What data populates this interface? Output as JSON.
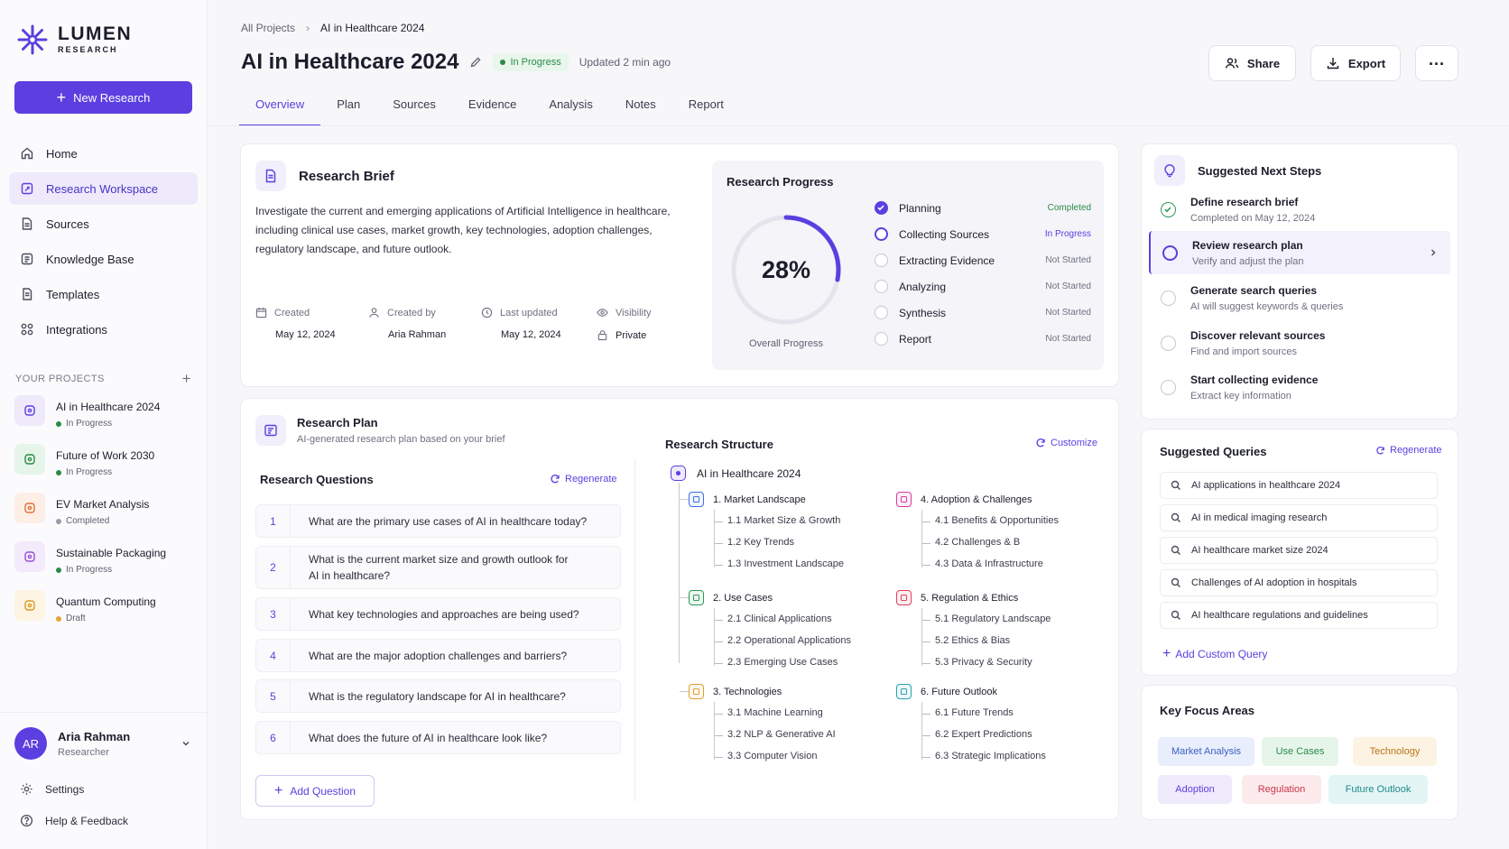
{
  "brand": {
    "name": "LUMEN",
    "sub": "RESEARCH",
    "accent": "#5b3fe0"
  },
  "sidebar": {
    "new_button": "New Research",
    "nav": [
      {
        "label": "Home",
        "icon": "home-icon"
      },
      {
        "label": "Research Workspace",
        "icon": "workspace-icon",
        "active": true
      },
      {
        "label": "Sources",
        "icon": "document-icon"
      },
      {
        "label": "Knowledge Base",
        "icon": "database-icon"
      },
      {
        "label": "Templates",
        "icon": "template-icon"
      },
      {
        "label": "Integrations",
        "icon": "integrations-icon"
      }
    ],
    "projects_title": "YOUR PROJECTS",
    "projects": [
      {
        "name": "AI in Healthcare 2024",
        "status": "In Progress",
        "status_color": "#2b8a46",
        "icon_bg": "#eeeafc",
        "icon_color": "#5b3fe0"
      },
      {
        "name": "Future of Work 2030",
        "status": "In Progress",
        "status_color": "#2b8a46",
        "icon_bg": "#e6f5ea",
        "icon_color": "#2b8a46"
      },
      {
        "name": "EV Market Analysis",
        "status": "Completed",
        "status_color": "#9a9cab",
        "icon_bg": "#fdeee6",
        "icon_color": "#e0703a"
      },
      {
        "name": "Sustainable Packaging",
        "status": "In Progress",
        "status_color": "#2b8a46",
        "icon_bg": "#f3eafb",
        "icon_color": "#9b4fd8"
      },
      {
        "name": "Quantum Computing",
        "status": "Draft",
        "status_color": "#e8a23a",
        "icon_bg": "#fdf4e3",
        "icon_color": "#d99a22"
      }
    ],
    "user": {
      "initials": "AR",
      "name": "Aria Rahman",
      "role": "Researcher"
    },
    "settings": "Settings",
    "help": "Help & Feedback"
  },
  "header": {
    "breadcrumb_root": "All Projects",
    "breadcrumb_current": "AI in Healthcare 2024",
    "title": "AI in Healthcare 2024",
    "status": "In Progress",
    "updated": "Updated 2 min ago",
    "share": "Share",
    "export": "Export",
    "tabs": [
      "Overview",
      "Plan",
      "Sources",
      "Evidence",
      "Analysis",
      "Notes",
      "Report"
    ]
  },
  "brief": {
    "title": "Research Brief",
    "text": "Investigate the current and emerging applications of Artificial Intelligence in healthcare, including clinical use cases, market growth, key technologies, adoption challenges, regulatory landscape, and future outlook.",
    "meta": [
      {
        "label": "Created",
        "value": "May 12, 2024"
      },
      {
        "label": "Created by",
        "value": "Aria Rahman"
      },
      {
        "label": "Last updated",
        "value": "May 12, 2024"
      },
      {
        "label": "Visibility",
        "value": "Private"
      }
    ]
  },
  "progress": {
    "title": "Research Progress",
    "percent_label": "28%",
    "percent": 0.28,
    "caption": "Overall Progress",
    "steps": [
      {
        "name": "Planning",
        "status": "Completed",
        "state": "done"
      },
      {
        "name": "Collecting Sources",
        "status": "In Progress",
        "state": "active"
      },
      {
        "name": "Extracting Evidence",
        "status": "Not Started",
        "state": "todo"
      },
      {
        "name": "Analyzing",
        "status": "Not Started",
        "state": "todo"
      },
      {
        "name": "Synthesis",
        "status": "Not Started",
        "state": "todo"
      },
      {
        "name": "Report",
        "status": "Not Started",
        "state": "todo"
      }
    ]
  },
  "plan": {
    "title": "Research Plan",
    "subtitle": "AI-generated research plan based on your brief",
    "questions_title": "Research Questions",
    "regenerate": "Regenerate",
    "questions": [
      {
        "n": "1",
        "text": "What are the primary use cases of AI in healthcare today?"
      },
      {
        "n": "2",
        "text": "What is the current market size and growth outlook for AI in healthcare?"
      },
      {
        "n": "3",
        "text": "What key technologies and approaches are being used?"
      },
      {
        "n": "4",
        "text": "What are the major adoption challenges and barriers?"
      },
      {
        "n": "5",
        "text": "What is the regulatory landscape for AI in healthcare?"
      },
      {
        "n": "6",
        "text": "What does the future of AI in healthcare look like?"
      }
    ],
    "add_question": "Add Question"
  },
  "structure": {
    "title": "Research Structure",
    "customize": "Customize",
    "root": "AI in Healthcare 2024",
    "sections": [
      {
        "title": "1. Market Landscape",
        "color": "#3d6fe0",
        "items": [
          "1.1 Market Size & Growth",
          "1.2 Key Trends",
          "1.3 Investment Landscape"
        ]
      },
      {
        "title": "2. Use Cases",
        "color": "#2b9a56",
        "items": [
          "2.1 Clinical Applications",
          "2.2 Operational Applications",
          "2.3 Emerging Use Cases"
        ]
      },
      {
        "title": "3. Technologies",
        "color": "#e0a030",
        "items": [
          "3.1 Machine Learning",
          "3.2 NLP & Generative AI",
          "3.3 Computer Vision"
        ]
      },
      {
        "title": "4. Adoption & Challenges",
        "color": "#d63aa0",
        "items": [
          "4.1 Benefits & Opportunities",
          "4.2 Challenges & B",
          "4.3 Data & Infrastructure"
        ]
      },
      {
        "title": "5. Regulation & Ethics",
        "color": "#e0405a",
        "items": [
          "5.1 Regulatory Landscape",
          "5.2 Ethics & Bias",
          "5.3 Privacy & Security"
        ]
      },
      {
        "title": "6. Future Outlook",
        "color": "#2aa0b0",
        "items": [
          "6.1 Future Trends",
          "6.2 Expert Predictions",
          "6.3 Strategic Implications"
        ]
      }
    ]
  },
  "next_steps": {
    "title": "Suggested Next Steps",
    "items": [
      {
        "title": "Define research brief",
        "sub": "Completed on May 12, 2024",
        "state": "done"
      },
      {
        "title": "Review research plan",
        "sub": "Verify and adjust the plan",
        "state": "active"
      },
      {
        "title": "Generate search queries",
        "sub": "AI will suggest keywords & queries",
        "state": "todo"
      },
      {
        "title": "Discover relevant sources",
        "sub": "Find and import sources",
        "state": "todo"
      },
      {
        "title": "Start collecting evidence",
        "sub": "Extract key information",
        "state": "todo"
      }
    ]
  },
  "queries": {
    "title": "Suggested Queries",
    "regenerate": "Regenerate",
    "items": [
      "AI applications in healthcare 2024",
      "AI in medical imaging research",
      "AI healthcare market size 2024",
      "Challenges of AI adoption in hospitals",
      "AI healthcare regulations and guidelines"
    ],
    "add": "Add Custom Query"
  },
  "focus": {
    "title": "Key Focus Areas",
    "chips": [
      {
        "label": "Market Analysis",
        "bg": "#e8eefc",
        "color": "#3d5fc0"
      },
      {
        "label": "Use Cases",
        "bg": "#e6f5ea",
        "color": "#2b8a46"
      },
      {
        "label": "Technology",
        "bg": "#fdf3e3",
        "color": "#b8761a"
      },
      {
        "label": "Adoption",
        "bg": "#efeafc",
        "color": "#5b3fe0"
      },
      {
        "label": "Regulation",
        "bg": "#fdeaec",
        "color": "#c8364a"
      },
      {
        "label": "Future Outlook",
        "bg": "#e4f5f5",
        "color": "#1f8a8e"
      }
    ]
  }
}
